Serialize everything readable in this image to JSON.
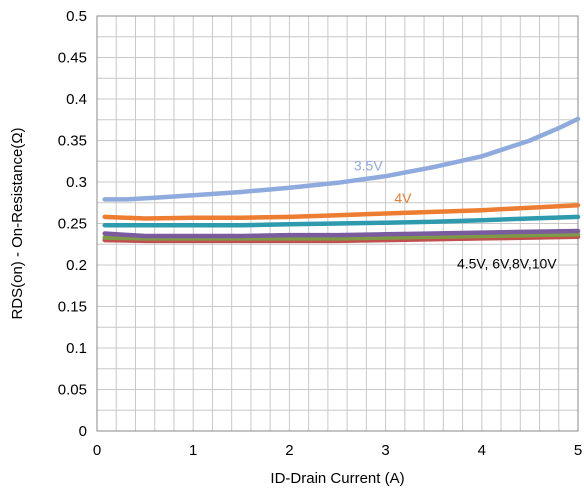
{
  "chart_data": {
    "type": "line",
    "title": "",
    "xlabel": "ID-Drain Current (A)",
    "ylabel": "RDS(on) - On-Resistance(Ω)",
    "xlim": [
      0,
      5
    ],
    "ylim": [
      0,
      0.5
    ],
    "xticks": [
      "0",
      "1",
      "2",
      "3",
      "4",
      "5"
    ],
    "yticks": [
      "0",
      "0.05",
      "0.1",
      "0.15",
      "0.2",
      "0.25",
      "0.3",
      "0.35",
      "0.4",
      "0.45",
      "0.5"
    ],
    "grid": true,
    "legend": "none",
    "series": [
      {
        "name": "3.5V",
        "color": "#8FAADC",
        "x": [
          0.08,
          0.3,
          0.6,
          1.0,
          1.5,
          2.0,
          2.5,
          3.0,
          3.5,
          4.0,
          4.5,
          4.8,
          5.0
        ],
        "y": [
          0.279,
          0.279,
          0.281,
          0.284,
          0.288,
          0.293,
          0.299,
          0.307,
          0.318,
          0.331,
          0.35,
          0.365,
          0.376
        ]
      },
      {
        "name": "4V",
        "color": "#ED7D31",
        "x": [
          0.08,
          0.5,
          1.0,
          1.5,
          2.0,
          2.5,
          3.0,
          3.5,
          4.0,
          4.5,
          5.0
        ],
        "y": [
          0.258,
          0.256,
          0.257,
          0.257,
          0.258,
          0.26,
          0.262,
          0.264,
          0.266,
          0.269,
          0.272
        ]
      },
      {
        "name": "",
        "color": "#2E9AAE",
        "x": [
          0.08,
          0.5,
          1.0,
          1.5,
          2.0,
          2.5,
          3.0,
          3.5,
          4.0,
          4.5,
          5.0
        ],
        "y": [
          0.248,
          0.248,
          0.248,
          0.248,
          0.249,
          0.25,
          0.251,
          0.252,
          0.254,
          0.256,
          0.258
        ]
      },
      {
        "name": "",
        "color": "#7A5C9E",
        "x": [
          0.08,
          0.5,
          1.0,
          1.5,
          2.0,
          2.5,
          3.0,
          3.5,
          4.0,
          4.5,
          5.0
        ],
        "y": [
          0.238,
          0.235,
          0.235,
          0.235,
          0.236,
          0.236,
          0.237,
          0.238,
          0.239,
          0.24,
          0.241
        ]
      },
      {
        "name": "",
        "color": "#7F9A46",
        "x": [
          0.08,
          0.5,
          1.0,
          1.5,
          2.0,
          2.5,
          3.0,
          3.5,
          4.0,
          4.5,
          5.0
        ],
        "y": [
          0.233,
          0.232,
          0.232,
          0.232,
          0.232,
          0.232,
          0.233,
          0.234,
          0.235,
          0.236,
          0.237
        ]
      },
      {
        "name": "",
        "color": "#C0504D",
        "x": [
          0.08,
          0.5,
          1.0,
          1.5,
          2.0,
          2.5,
          3.0,
          3.5,
          4.0,
          4.5,
          5.0
        ],
        "y": [
          0.23,
          0.229,
          0.229,
          0.229,
          0.229,
          0.229,
          0.23,
          0.231,
          0.232,
          0.233,
          0.234
        ]
      }
    ],
    "annotations": [
      {
        "text": "3.5V",
        "x": 2.82,
        "y": 0.314,
        "color": "#8FAADC"
      },
      {
        "text": "4V",
        "x": 3.18,
        "y": 0.275,
        "color": "#ED7D31"
      },
      {
        "text": "4.5V, 6V,8V,10V",
        "x": 4.26,
        "y": 0.196,
        "color": "#000000"
      }
    ]
  }
}
